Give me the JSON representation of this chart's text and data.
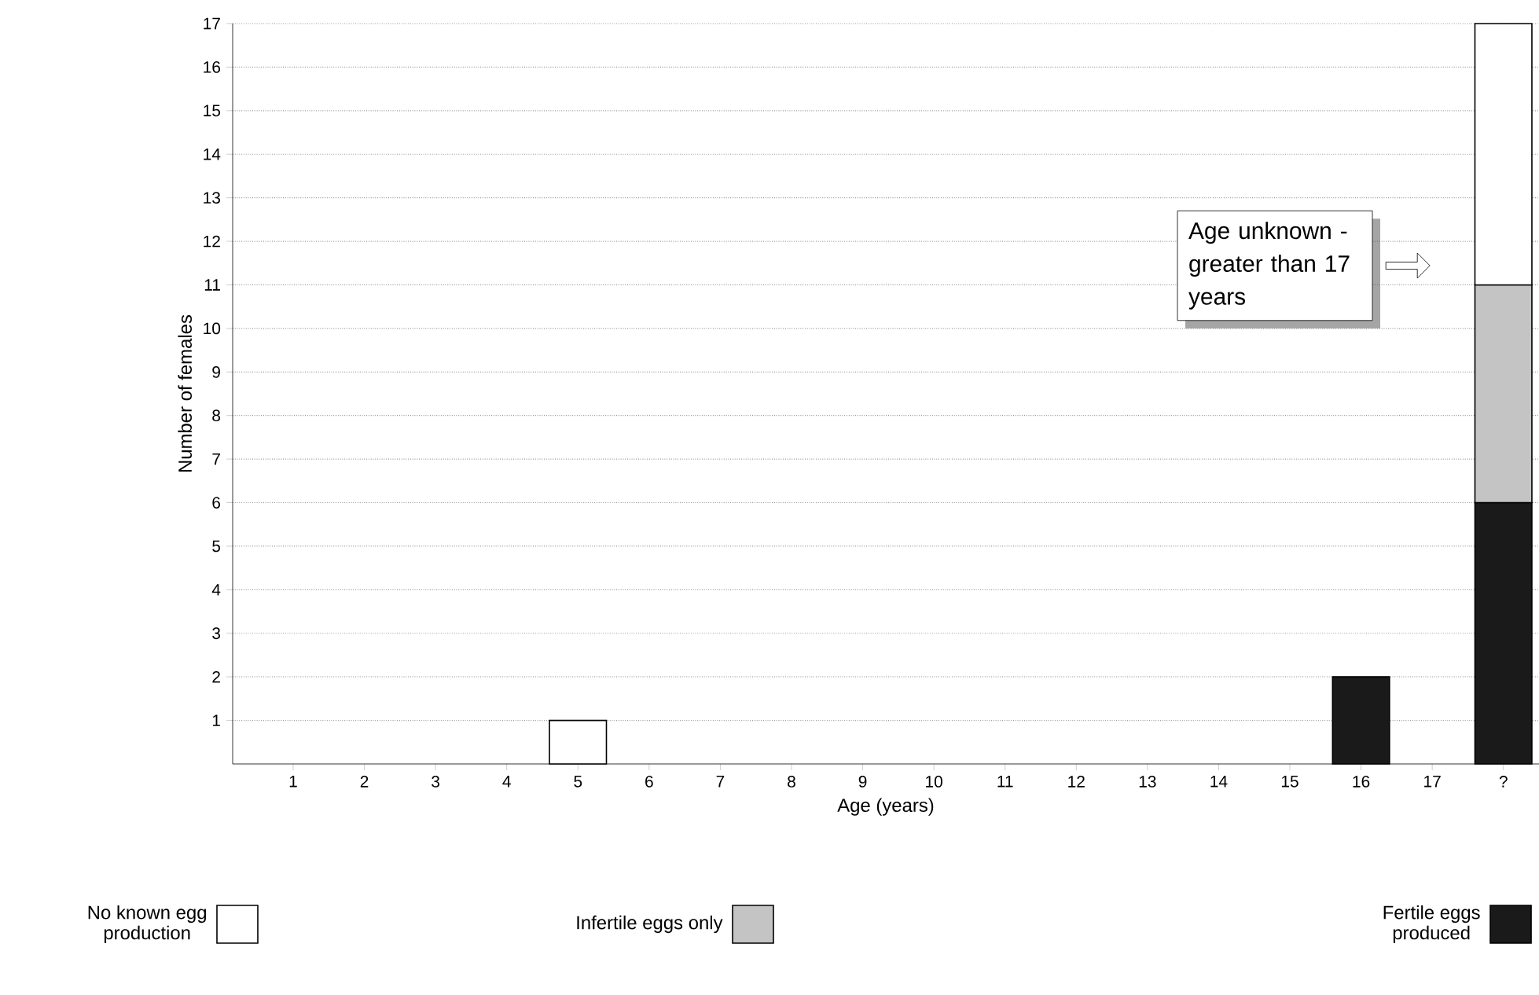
{
  "chart_data": {
    "type": "bar",
    "stacked": true,
    "xlabel": "Age (years)",
    "ylabel": "Number of females",
    "categories": [
      "1",
      "2",
      "3",
      "4",
      "5",
      "6",
      "7",
      "8",
      "9",
      "10",
      "11",
      "12",
      "13",
      "14",
      "15",
      "16",
      "17",
      "?"
    ],
    "series": [
      {
        "name": "Fertile eggs produced",
        "color": "#1a1a1a",
        "values": [
          null,
          null,
          null,
          null,
          null,
          null,
          null,
          null,
          null,
          null,
          null,
          null,
          null,
          null,
          null,
          2,
          null,
          6
        ]
      },
      {
        "name": "Infertile eggs only",
        "color": "#c4c4c4",
        "values": [
          null,
          null,
          null,
          null,
          null,
          null,
          null,
          null,
          null,
          null,
          null,
          null,
          null,
          null,
          null,
          null,
          null,
          5
        ]
      },
      {
        "name": "No known egg production",
        "color": "#ffffff",
        "values": [
          null,
          null,
          null,
          null,
          1,
          null,
          null,
          null,
          null,
          null,
          null,
          null,
          null,
          null,
          null,
          null,
          null,
          6
        ]
      }
    ],
    "ylim": [
      0,
      17
    ],
    "yticks": [
      1,
      2,
      3,
      4,
      5,
      6,
      7,
      8,
      9,
      10,
      11,
      12,
      13,
      14,
      15,
      16,
      17
    ],
    "grid": "y",
    "legend": "bottom",
    "annotations": [
      "Age unknown - greater than 17 years"
    ]
  }
}
